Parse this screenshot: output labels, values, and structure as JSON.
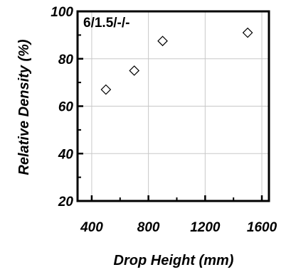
{
  "chart_data": {
    "type": "scatter",
    "annotation": "6/1.5/-/-",
    "xlabel": "Drop Height (mm)",
    "ylabel": "Relative Density (%)",
    "xlim": [
      300,
      1650
    ],
    "ylim": [
      20,
      100
    ],
    "x_ticks": [
      400,
      800,
      1200,
      1600
    ],
    "y_ticks": [
      20,
      40,
      60,
      80,
      100
    ],
    "grid": true,
    "marker": "open-diamond",
    "series": [
      {
        "x": [
          500,
          700,
          900,
          1500
        ],
        "y": [
          67,
          75,
          87.5,
          91
        ]
      }
    ]
  }
}
